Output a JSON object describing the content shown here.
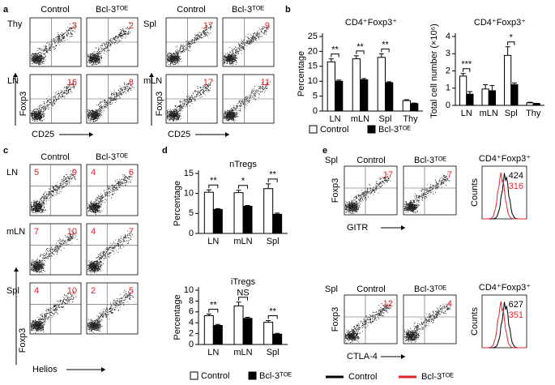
{
  "panel_labels": [
    "a",
    "b",
    "c",
    "d",
    "e"
  ],
  "panel_a": {
    "groups": [
      {
        "columns": [
          "Control",
          "Bcl-3ᵀᴼᴱ"
        ],
        "rows": [
          {
            "label": "Thy",
            "values": [
              3,
              2
            ]
          },
          {
            "label": "LN",
            "values": [
              16,
              8
            ]
          }
        ],
        "y_label": "Foxp3",
        "x_label": "CD25"
      },
      {
        "columns": [
          "Control",
          "Bcl-3ᵀᴼᴱ"
        ],
        "rows": [
          {
            "label": "Spl",
            "values": [
              17,
              9
            ]
          },
          {
            "label": "mLN",
            "values": [
              17,
              11
            ]
          }
        ],
        "y_label": "Foxp3",
        "x_label": "CD25"
      }
    ]
  },
  "panel_c": {
    "columns": [
      "Control",
      "Bcl-3ᵀᴼᴱ"
    ],
    "rows": [
      {
        "label": "LN",
        "values": [
          [
            5,
            9
          ],
          [
            4,
            6
          ]
        ]
      },
      {
        "label": "mLN",
        "values": [
          [
            7,
            10
          ],
          [
            4,
            7
          ]
        ]
      },
      {
        "label": "Spl",
        "values": [
          [
            4,
            10
          ],
          [
            2,
            5
          ]
        ]
      }
    ],
    "y_label": "Foxp3",
    "x_label": "Helios"
  },
  "panel_e": {
    "columns": [
      "Control",
      "Bcl-3ᵀᴼᴱ"
    ],
    "rows": [
      {
        "label": "Spl",
        "values": [
          17,
          7
        ],
        "x_label": "GITR",
        "y_label": "Foxp3",
        "histogram": {
          "title": "CD4⁺Foxp3⁺",
          "y_label": "Counts",
          "values": [
            424,
            316
          ]
        }
      },
      {
        "label": "Spl",
        "values": [
          12,
          4
        ],
        "x_label": "CTLA-4",
        "y_label": "Foxp3",
        "histogram": {
          "title": "CD4⁺Foxp3⁺",
          "y_label": "Counts",
          "values": [
            627,
            351
          ]
        }
      }
    ],
    "legend": [
      {
        "label": "Control",
        "color": "#000000"
      },
      {
        "label": "Bcl-3ᵀᴼᴱ",
        "color": "#e3242b"
      }
    ]
  },
  "chart_data": [
    {
      "type": "bar",
      "title": "CD4⁺Foxp3⁺",
      "y_label": "Percentage",
      "categories": [
        "LN",
        "mLN",
        "Spl",
        "Thy"
      ],
      "series": [
        {
          "name": "Control",
          "color": "#ffffff",
          "values": [
            16.5,
            17.5,
            18,
            3.5
          ],
          "errors": [
            1,
            1,
            1.2,
            0.3
          ]
        },
        {
          "name": "Bcl-3ᵀᴼᴱ",
          "color": "#000000",
          "values": [
            10,
            10.5,
            9.5,
            2.5
          ],
          "errors": [
            0.4,
            0.4,
            0.3,
            0.2
          ]
        }
      ],
      "significance": [
        "**",
        "**",
        "**",
        null
      ],
      "ylim": [
        0,
        25
      ],
      "yticks": [
        0,
        5,
        10,
        15,
        20,
        25
      ],
      "legend": "bottom"
    },
    {
      "type": "bar",
      "title": "CD4⁺Foxp3⁺",
      "y_label": "Total cell number (×10⁶)",
      "categories": [
        "LN",
        "mLN",
        "Spl",
        "Thy"
      ],
      "series": [
        {
          "name": "Control",
          "color": "#ffffff",
          "values": [
            1.7,
            0.95,
            2.9,
            0.15
          ],
          "errors": [
            0.15,
            0.25,
            0.5,
            0.03
          ]
        },
        {
          "name": "Bcl-3ᵀᴼᴱ",
          "color": "#000000",
          "values": [
            0.65,
            0.85,
            1.2,
            0.1
          ],
          "errors": [
            0.15,
            0.3,
            0.1,
            0.02
          ]
        }
      ],
      "significance": [
        "***",
        null,
        "*",
        null
      ],
      "ylim": [
        0,
        4
      ],
      "yticks": [
        0,
        1,
        2,
        3,
        4
      ],
      "legend": false
    },
    {
      "type": "bar",
      "title": "nTregs",
      "y_label": "Percentage",
      "categories": [
        "LN",
        "mLN",
        "Spl"
      ],
      "series": [
        {
          "name": "Control",
          "color": "#ffffff",
          "values": [
            10.3,
            10.2,
            11.2
          ],
          "errors": [
            0.6,
            0.6,
            1.2
          ]
        },
        {
          "name": "Bcl-3ᵀᴼᴱ",
          "color": "#000000",
          "values": [
            6,
            6.8,
            4.8
          ],
          "errors": [
            0.2,
            0.2,
            0.3
          ]
        }
      ],
      "significance": [
        "**",
        "*",
        "**"
      ],
      "ylim": [
        0,
        15
      ],
      "yticks": [
        0,
        5,
        10,
        15
      ],
      "legend": false
    },
    {
      "type": "bar",
      "title": "iTregs",
      "y_label": "Percentage",
      "categories": [
        "LN",
        "mLN",
        "Spl"
      ],
      "series": [
        {
          "name": "Control",
          "color": "#ffffff",
          "values": [
            5.3,
            7.1,
            4.1
          ],
          "errors": [
            0.3,
            0.7,
            0.3
          ]
        },
        {
          "name": "Bcl-3ᵀᴼᴱ",
          "color": "#000000",
          "values": [
            3.5,
            4.8,
            1.9
          ],
          "errors": [
            0.2,
            0.2,
            0.15
          ]
        }
      ],
      "significance": [
        "**",
        "NS",
        "**"
      ],
      "ylim": [
        0,
        10
      ],
      "yticks": [
        0,
        2,
        4,
        6,
        8,
        10
      ],
      "legend": "bottom"
    }
  ]
}
